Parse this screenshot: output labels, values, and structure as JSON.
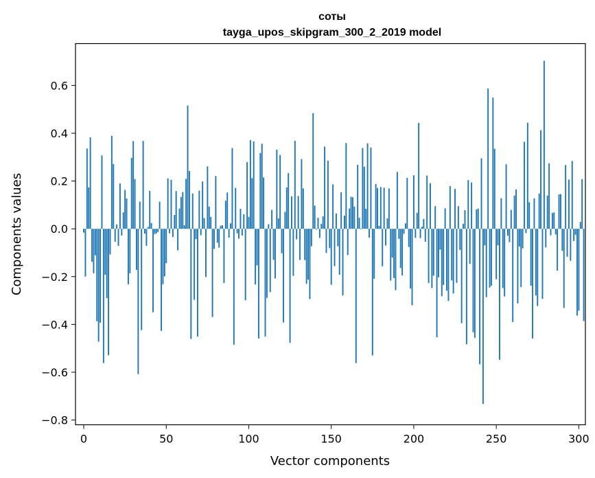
{
  "chart_data": {
    "type": "bar",
    "title": "соты",
    "subtitle": "tayga_upos_skipgram_300_2_2019 model",
    "xlabel": "Vector components",
    "ylabel": "Components values",
    "xlim": [
      -5,
      304
    ],
    "ylim": [
      -0.82,
      0.775
    ],
    "xticks": [
      0,
      50,
      100,
      150,
      200,
      250,
      300
    ],
    "yticks": [
      -0.8,
      -0.6,
      -0.4,
      -0.2,
      0.0,
      0.2,
      0.4,
      0.6
    ],
    "ytick_labels": [
      "−0.8",
      "−0.6",
      "−0.4",
      "−0.2",
      "0.0",
      "0.2",
      "0.4",
      "0.6"
    ],
    "bar_color": "#1f77b4",
    "grid": false,
    "values": [
      -0.016,
      -0.2,
      0.336,
      0.173,
      0.383,
      -0.138,
      -0.186,
      -0.111,
      -0.387,
      -0.472,
      -0.393,
      0.307,
      -0.562,
      -0.192,
      -0.29,
      -0.529,
      -0.107,
      0.389,
      0.271,
      -0.054,
      0.018,
      -0.071,
      0.19,
      -0.028,
      0.069,
      0.163,
      0.127,
      -0.232,
      -0.186,
      0.297,
      0.367,
      0.208,
      -0.172,
      -0.608,
      0.114,
      -0.424,
      0.368,
      -0.02,
      -0.071,
      0.008,
      0.159,
      0.024,
      -0.349,
      -0.022,
      -0.019,
      -0.013,
      0.114,
      -0.427,
      -0.232,
      -0.199,
      -0.144,
      0.211,
      -0.019,
      0.205,
      -0.034,
      0.058,
      0.158,
      -0.09,
      0.085,
      0.133,
      0.154,
      0.015,
      0.209,
      0.516,
      0.242,
      -0.461,
      0.148,
      -0.297,
      -0.043,
      -0.451,
      0.16,
      -0.027,
      0.198,
      0.045,
      -0.202,
      0.261,
      0.093,
      0.05,
      -0.369,
      -0.084,
      0.221,
      -0.058,
      -0.079,
      0.013,
      0.015,
      -0.227,
      0.118,
      0.152,
      -0.037,
      0.023,
      0.338,
      -0.485,
      0.171,
      -0.019,
      -0.041,
      0.084,
      -0.028,
      0.061,
      -0.299,
      0.279,
      0.05,
      0.371,
      0.212,
      0.366,
      -0.233,
      -0.153,
      -0.459,
      0.317,
      0.356,
      0.215,
      -0.451,
      -0.289,
      0.019,
      -0.265,
      0.079,
      -0.13,
      -0.208,
      0.331,
      0.044,
      0.309,
      -0.102,
      -0.392,
      0.071,
      0.173,
      0.233,
      -0.477,
      0.136,
      -0.197,
      0.368,
      -0.044,
      0.137,
      -0.13,
      0.292,
      0.169,
      -0.131,
      -0.23,
      -0.213,
      -0.294,
      -0.073,
      0.484,
      0.097,
      -0.003,
      0.046,
      -0.038,
      0.021,
      0.052,
      0.344,
      -0.101,
      0.285,
      -0.081,
      -0.234,
      0.186,
      -0.156,
      0.064,
      -0.073,
      -0.192,
      0.153,
      -0.279,
      0.055,
      0.359,
      -0.11,
      0.085,
      0.134,
      0.132,
      0.093,
      -0.562,
      0.268,
      0.046,
      -0.002,
      0.338,
      0.26,
      0.084,
      0.358,
      -0.037,
      0.34,
      -0.53,
      -0.209,
      0.188,
      0.171,
      0.012,
      0.175,
      -0.157,
      0.172,
      -0.07,
      0.044,
      0.169,
      -0.217,
      -0.12,
      -0.206,
      -0.257,
      0.238,
      -0.042,
      -0.164,
      -0.195,
      -0.021,
      0.023,
      0.213,
      -0.076,
      -0.25,
      -0.32,
      0.224,
      -0.038,
      0.067,
      0.443,
      -0.039,
      0.009,
      0.041,
      -0.054,
      0.223,
      -0.227,
      0.191,
      -0.248,
      -0.196,
      0.095,
      -0.454,
      -0.203,
      -0.087,
      -0.282,
      -0.235,
      0.086,
      -0.259,
      -0.302,
      0.179,
      -0.216,
      -0.271,
      0.167,
      -0.226,
      0.095,
      -0.088,
      -0.395,
      0.021,
      0.078,
      -0.483,
      0.204,
      -0.147,
      0.194,
      -0.433,
      -0.456,
      0.081,
      0.085,
      -0.567,
      0.295,
      -0.733,
      -0.069,
      -0.286,
      0.587,
      -0.246,
      -0.238,
      0.549,
      0.335,
      -0.211,
      -0.069,
      -0.548,
      0.128,
      -0.248,
      -0.283,
      0.27,
      -0.029,
      -0.056,
      0.079,
      -0.39,
      0.139,
      0.165,
      -0.312,
      -0.074,
      -0.244,
      -0.082,
      0.364,
      -0.018,
      0.444,
      0.111,
      -0.238,
      -0.459,
      0.127,
      -0.279,
      -0.323,
      0.147,
      0.413,
      -0.293,
      0.703,
      -0.078,
      0.139,
      0.274,
      -0.027,
      0.066,
      0.069,
      -0.024,
      -0.175,
      0.144,
      0.145,
      -0.092,
      -0.331,
      0.267,
      -0.117,
      0.206,
      -0.134,
      0.284,
      -0.051,
      -0.025,
      -0.363,
      -0.343,
      0.029,
      0.208,
      -0.386
    ]
  }
}
